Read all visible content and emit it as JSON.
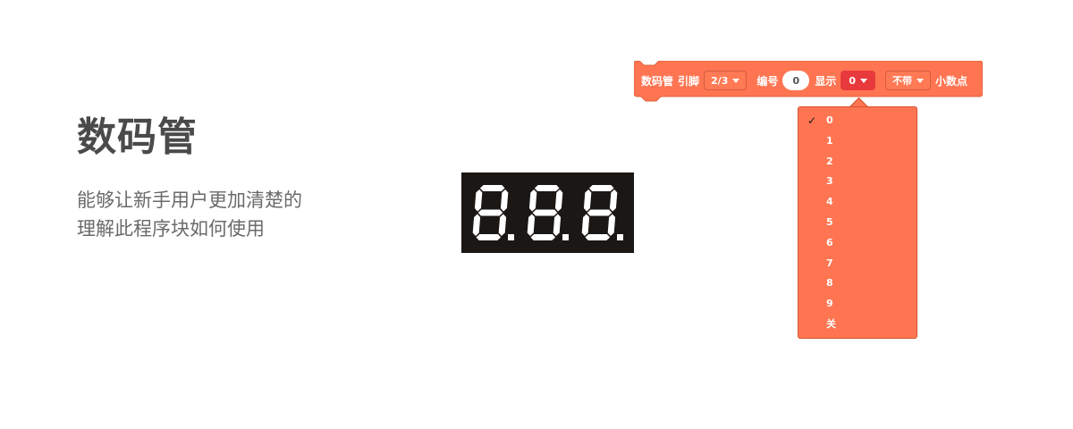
{
  "page": {
    "title": "数码管",
    "description_lines": [
      "能够让新手用户更加清楚的",
      "理解此程序块如何使用"
    ]
  },
  "display": {
    "digits": [
      "8",
      "8",
      "8"
    ],
    "segment_color": "#ffffff",
    "background": "#1b1715"
  },
  "block": {
    "color": "#ff7552",
    "label_main": "数码管",
    "label_pin": "引脚",
    "pin_value": "2/3",
    "label_index": "编号",
    "index_value": "0",
    "label_show": "显示",
    "show_value": "0",
    "dot_value": "不带",
    "label_dot": "小数点"
  },
  "menu": {
    "selected_index": 0,
    "items": [
      "0",
      "1",
      "2",
      "3",
      "4",
      "5",
      "6",
      "7",
      "8",
      "9",
      "关"
    ],
    "check_mark": "✓"
  }
}
